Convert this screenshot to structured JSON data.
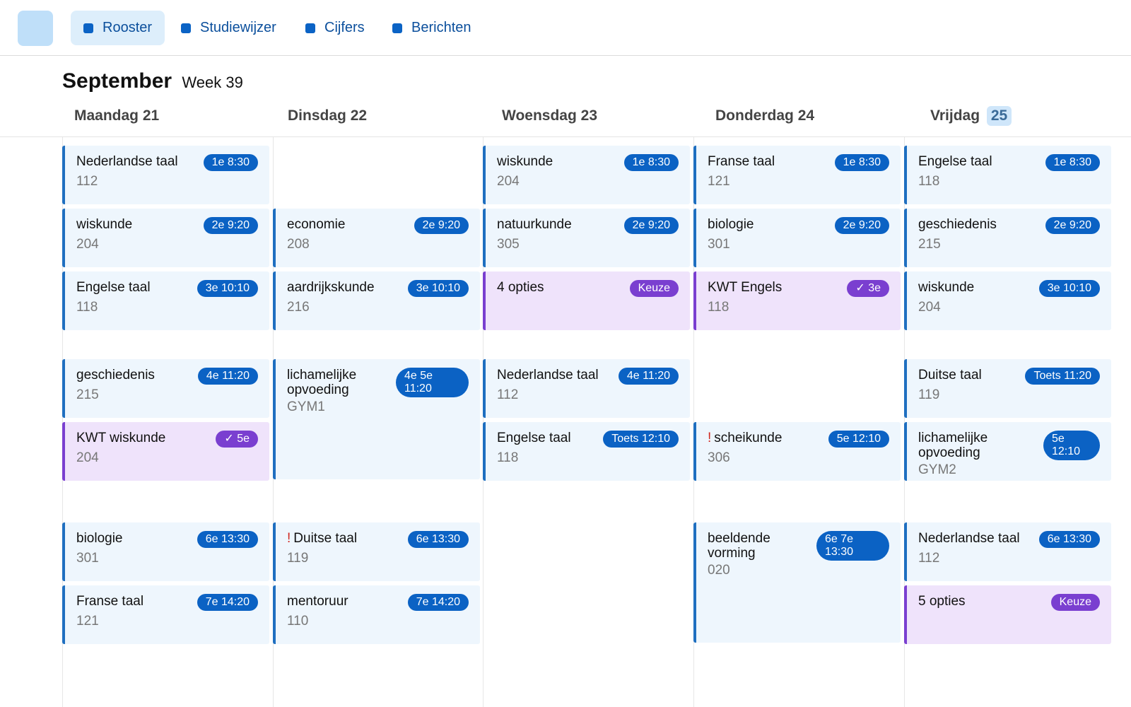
{
  "nav": {
    "tabs": [
      {
        "label": "Rooster",
        "active": true
      },
      {
        "label": "Studiewijzer",
        "active": false
      },
      {
        "label": "Cijfers",
        "active": false
      },
      {
        "label": "Berichten",
        "active": false
      }
    ]
  },
  "header": {
    "month": "September",
    "week": "Week 39"
  },
  "days": [
    {
      "name": "Maandag",
      "date": "21"
    },
    {
      "name": "Dinsdag",
      "date": "22"
    },
    {
      "name": "Woensdag",
      "date": "23"
    },
    {
      "name": "Donderdag",
      "date": "24"
    },
    {
      "name": "Vrijdag",
      "date": "25",
      "today": true
    }
  ],
  "lessons": {
    "mon": [
      {
        "subject": "Nederlandse taal",
        "room": "112",
        "badge": "1e 8:30"
      },
      {
        "subject": "wiskunde",
        "room": "204",
        "badge": "2e 9:20"
      },
      {
        "subject": "Engelse taal",
        "room": "118",
        "badge": "3e 10:10"
      },
      {
        "subject": "geschiedenis",
        "room": "215",
        "badge": "4e 11:20"
      },
      {
        "subject": "KWT wiskunde",
        "room": "204",
        "badge": "✓ 5e"
      },
      {
        "subject": "biologie",
        "room": "301",
        "badge": "6e 13:30"
      },
      {
        "subject": "Franse taal",
        "room": "121",
        "badge": "7e 14:20"
      }
    ],
    "tue": [
      {
        "subject": "economie",
        "room": "208",
        "badge": "2e 9:20"
      },
      {
        "subject": "aardrijkskunde",
        "room": "216",
        "badge": "3e 10:10"
      },
      {
        "subject": "lichamelijke opvoeding",
        "room": "GYM1",
        "badge": "4e 5e 11:20"
      },
      {
        "subject": "Duitse taal",
        "room": "119",
        "badge": "6e 13:30",
        "alert": "!"
      },
      {
        "subject": "mentoruur",
        "room": "110",
        "badge": "7e 14:20"
      }
    ],
    "wed": [
      {
        "subject": "wiskunde",
        "room": "204",
        "badge": "1e 8:30"
      },
      {
        "subject": "natuurkunde",
        "room": "305",
        "badge": "2e 9:20"
      },
      {
        "subject": "4 opties",
        "badge": "Keuze"
      },
      {
        "subject": "Nederlandse taal",
        "room": "112",
        "badge": "4e 11:20"
      },
      {
        "subject": "Engelse taal",
        "room": "118",
        "badge": "Toets 12:10"
      }
    ],
    "thu": [
      {
        "subject": "Franse taal",
        "room": "121",
        "badge": "1e 8:30"
      },
      {
        "subject": "biologie",
        "room": "301",
        "badge": "2e 9:20"
      },
      {
        "subject": "KWT Engels",
        "room": "118",
        "badge": "✓ 3e"
      },
      {
        "subject": "scheikunde",
        "room": "306",
        "badge": "5e 12:10",
        "alert": "!"
      },
      {
        "subject": "beeldende vorming",
        "room": "020",
        "badge": "6e 7e 13:30"
      }
    ],
    "fri": [
      {
        "subject": "Engelse taal",
        "room": "118",
        "badge": "1e 8:30"
      },
      {
        "subject": "geschiedenis",
        "room": "215",
        "badge": "2e 9:20"
      },
      {
        "subject": "wiskunde",
        "room": "204",
        "badge": "3e 10:10"
      },
      {
        "subject": "Duitse taal",
        "room": "119",
        "badge": "Toets 11:20"
      },
      {
        "subject": "lichamelijke opvoeding",
        "room": "GYM2",
        "badge": "5e 12:10"
      },
      {
        "subject": "Nederlandse taal",
        "room": "112",
        "badge": "6e 13:30"
      },
      {
        "subject": "5 opties",
        "badge": "Keuze"
      }
    ]
  },
  "colors": {
    "accent": "#0b62c4",
    "choice": "#7a3fd0",
    "card_bg": "#eef6fd",
    "choice_bg": "#efe3fb",
    "alert": "#d0261d"
  }
}
